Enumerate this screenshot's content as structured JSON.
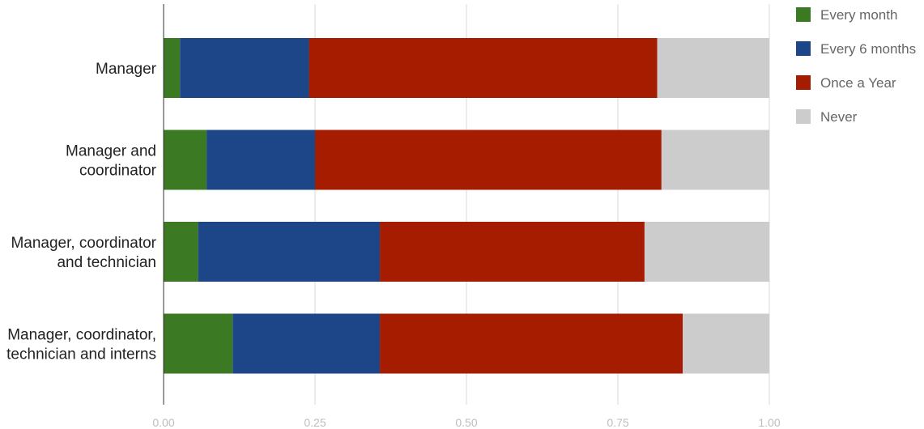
{
  "chart_data": {
    "type": "bar",
    "orientation": "horizontal",
    "stacked": true,
    "categories": [
      [
        "Manager"
      ],
      [
        "Manager and",
        "coordinator"
      ],
      [
        "Manager, coordinator",
        "and technician"
      ],
      [
        "Manager, coordinator,",
        "technician and interns"
      ]
    ],
    "series": [
      {
        "name": "Every month",
        "color": "#3b7a23",
        "values": [
          0.027,
          0.071,
          0.057,
          0.114
        ]
      },
      {
        "name": "Every 6 months",
        "color": "#1d4689",
        "values": [
          0.213,
          0.179,
          0.3,
          0.243
        ]
      },
      {
        "name": "Once a Year",
        "color": "#a61c00",
        "values": [
          0.575,
          0.572,
          0.437,
          0.5
        ]
      },
      {
        "name": "Never",
        "color": "#cccccc",
        "values": [
          0.185,
          0.178,
          0.206,
          0.143
        ]
      }
    ],
    "xlim": [
      0,
      1
    ],
    "x_ticks": [
      "0.00",
      "0.25",
      "0.50",
      "0.75",
      "1.00"
    ],
    "grid": true,
    "legend_position": "top-right",
    "title": "",
    "xlabel": "",
    "ylabel": ""
  }
}
